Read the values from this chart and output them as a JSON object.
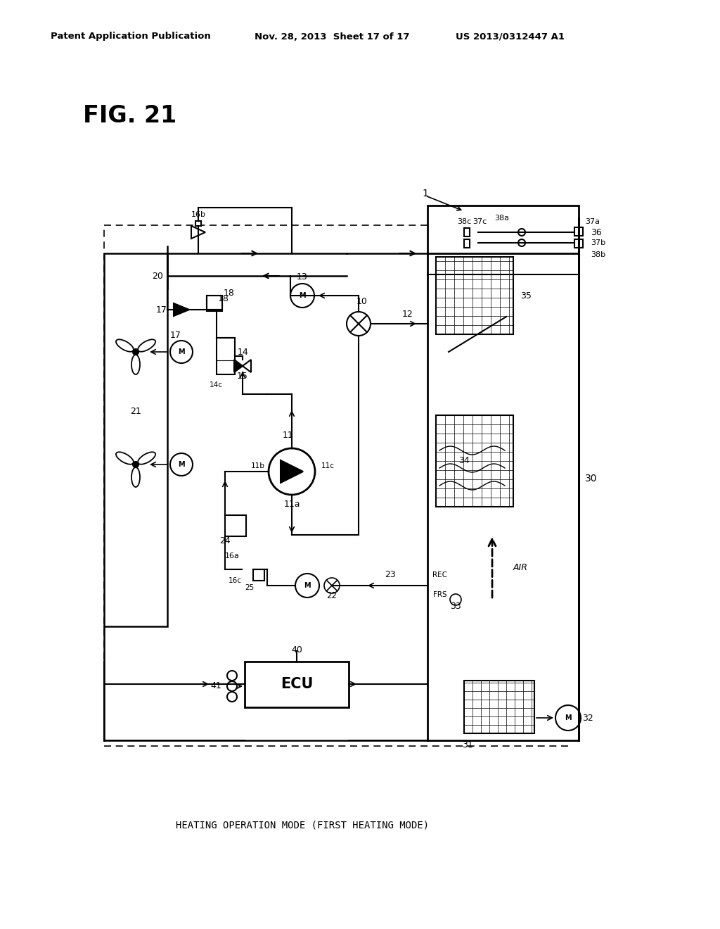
{
  "title": "FIG. 21",
  "header_left": "Patent Application Publication",
  "header_mid": "Nov. 28, 2013  Sheet 17 of 17",
  "header_right": "US 2013/0312447 A1",
  "caption": "HEATING OPERATION MODE (FIRST HEATING MODE)",
  "bg_color": "#ffffff",
  "line_color": "#000000"
}
